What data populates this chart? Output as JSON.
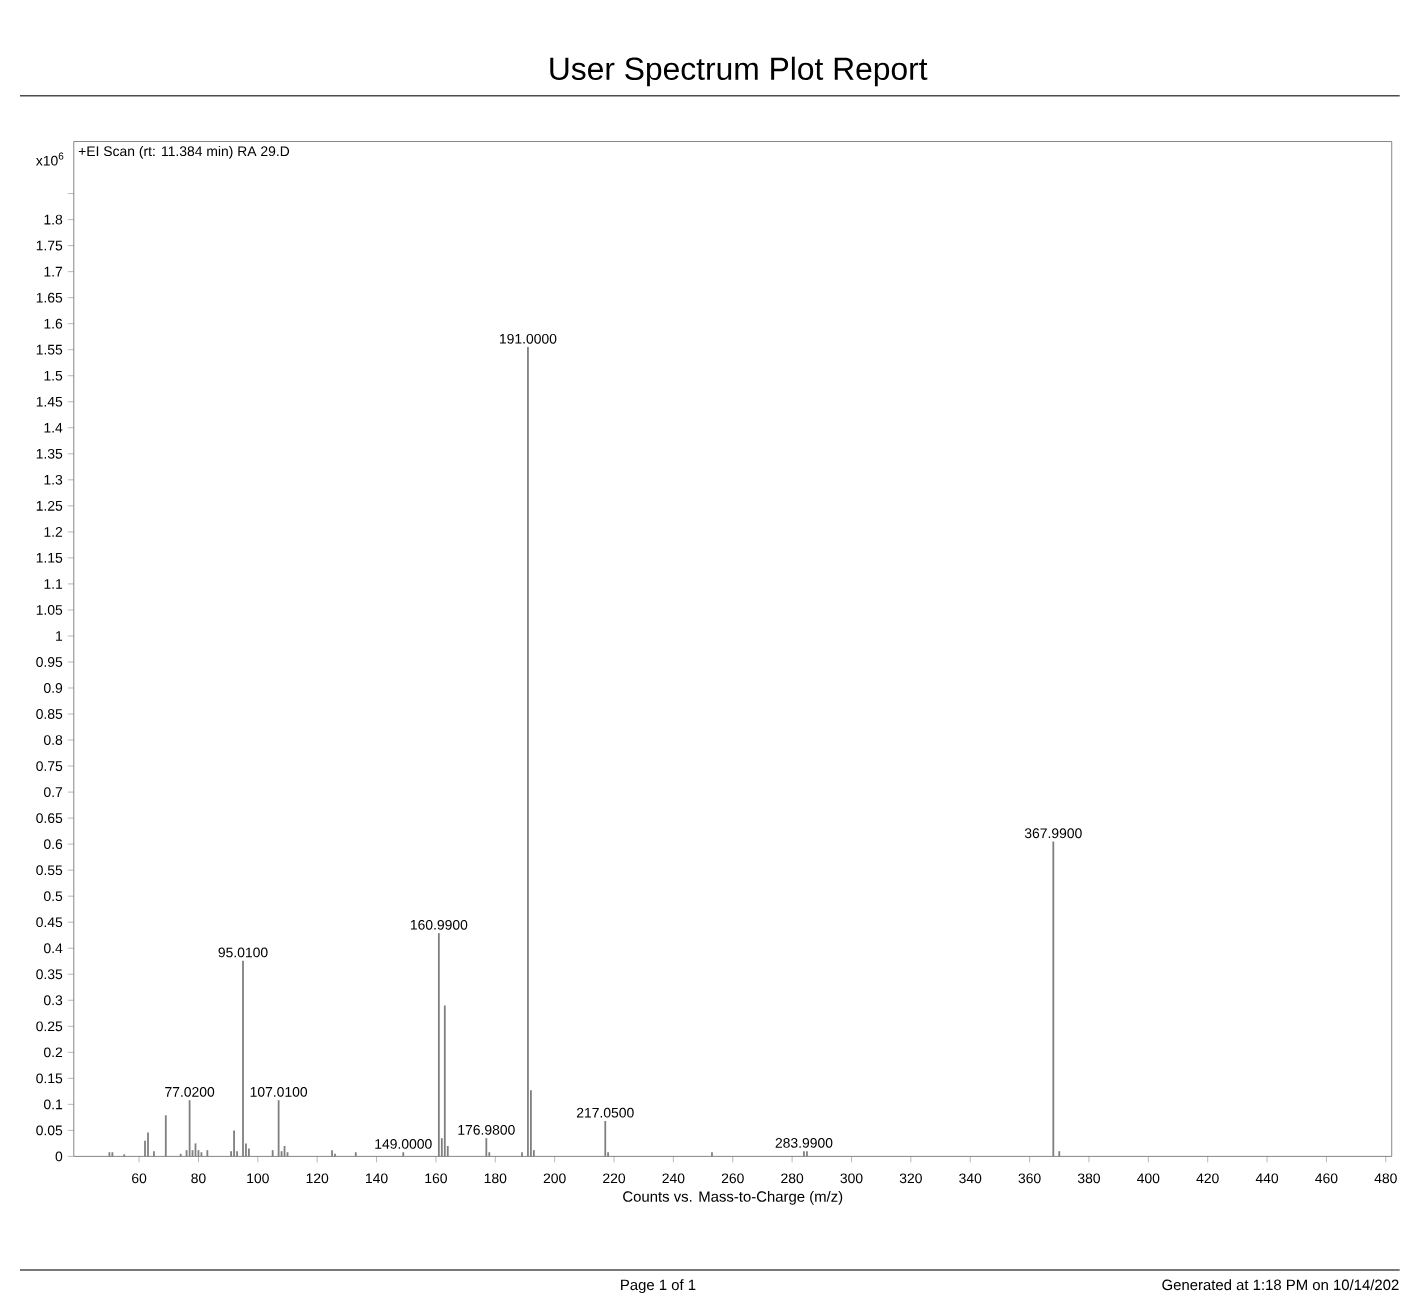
{
  "chart_data": {
    "type": "bar",
    "title": "User Spectrum Plot Report",
    "subtitle": "+EI Scan (rt: 11.384 min) RA 29.D",
    "xlabel": "Counts vs. Mass-to-Charge (m/z)",
    "ylabel": "x10$^{6}$",
    "color": "#7f7f7f",
    "x": [
      50,
      51,
      55,
      62,
      63,
      65,
      69,
      74,
      76,
      77.02,
      78,
      79,
      80,
      81,
      83,
      91,
      92,
      93,
      95.01,
      96,
      97,
      105,
      107.01,
      108,
      109,
      110,
      125,
      126,
      133,
      149.0,
      160.99,
      161.99,
      162.99,
      163.99,
      176.98,
      177.98,
      189,
      191.0,
      192,
      193,
      217.05,
      218,
      253,
      283.99,
      285,
      367.99,
      370
    ],
    "values": [
      0.008,
      0.008,
      0.004,
      0.03,
      0.046,
      0.01,
      0.079,
      0.005,
      0.012,
      0.108,
      0.012,
      0.025,
      0.012,
      0.008,
      0.012,
      0.01,
      0.05,
      0.01,
      0.376,
      0.025,
      0.015,
      0.012,
      0.108,
      0.01,
      0.02,
      0.008,
      0.012,
      0.005,
      0.008,
      0.008,
      0.429,
      0.035,
      0.29,
      0.02,
      0.035,
      0.008,
      0.008,
      1.555,
      0.127,
      0.012,
      0.068,
      0.008,
      0.008,
      0.01,
      0.01,
      0.605,
      0.01
    ],
    "xlim": [
      38,
      482
    ],
    "ylim": [
      0,
      1.95
    ],
    "xticks": [
      60,
      80,
      100,
      120,
      140,
      160,
      180,
      200,
      220,
      240,
      260,
      280,
      300,
      320,
      340,
      360,
      380,
      400,
      420,
      440,
      460,
      480
    ],
    "yticks": [
      0,
      0.05,
      0.1,
      0.15,
      0.2,
      0.25,
      0.3,
      0.35,
      0.4,
      0.45,
      0.5,
      0.55,
      0.6,
      0.65,
      0.7,
      0.75,
      0.8,
      0.85,
      0.9,
      0.95,
      1,
      1.05,
      1.1,
      1.15,
      1.2,
      1.25,
      1.3,
      1.35,
      1.4,
      1.45,
      1.5,
      1.55,
      1.6,
      1.65,
      1.7,
      1.75,
      1.8,
      {
        "value": 1.85,
        "label": null
      }
    ],
    "annotations": [
      {
        "text": "191.0000",
        "x": 191.0,
        "y": 1.555
      },
      {
        "text": "367.9900",
        "x": 367.99,
        "y": 0.605
      },
      {
        "text": "160.9900",
        "x": 160.99,
        "y": 0.429
      },
      {
        "text": "95.0100",
        "x": 95.01,
        "y": 0.376
      },
      {
        "text": "77.0200",
        "x": 77.02,
        "y": 0.108
      },
      {
        "text": "107.0100",
        "x": 107.01,
        "y": 0.108
      },
      {
        "text": "149.0000",
        "x": 149.0,
        "y": 0.008
      },
      {
        "text": "176.9800",
        "x": 176.98,
        "y": 0.035
      },
      {
        "text": "217.0500",
        "x": 217.05,
        "y": 0.068
      },
      {
        "text": "283.9900",
        "x": 283.99,
        "y": 0.01
      },
      "Page 1 of 1",
      "Generated at 1:18 PM on 10/14/202"
    ]
  }
}
